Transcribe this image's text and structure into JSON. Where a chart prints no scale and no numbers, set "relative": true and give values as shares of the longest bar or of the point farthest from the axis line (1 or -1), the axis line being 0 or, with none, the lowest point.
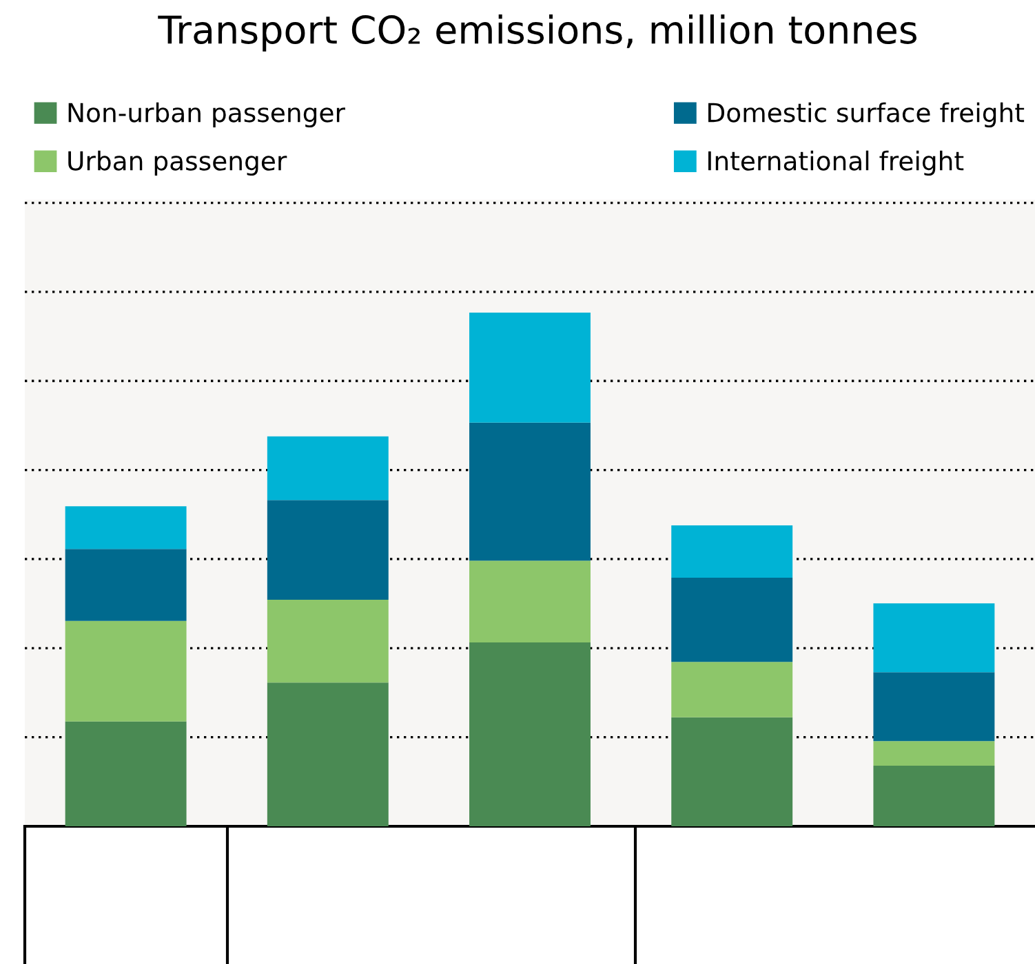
{
  "chart_data": {
    "type": "bar",
    "title": "Transport CO₂ emissions, million tonnes",
    "categories": [
      null,
      null,
      null,
      null,
      null
    ],
    "stacked": true,
    "relative": true,
    "grid": "y",
    "legend": "top",
    "series": [
      {
        "name": "Non-urban passenger",
        "color": "#4a8a53",
        "values": [
          0.204,
          0.28,
          0.358,
          0.212,
          0.118
        ]
      },
      {
        "name": "Urban passenger",
        "color": "#8dc66a",
        "values": [
          0.196,
          0.161,
          0.159,
          0.108,
          0.048
        ]
      },
      {
        "name": "Domestic surface freight",
        "color": "#006a8e",
        "values": [
          0.14,
          0.194,
          0.269,
          0.164,
          0.134
        ]
      },
      {
        "name": "International freight",
        "color": "#00b3d5",
        "values": [
          0.083,
          0.124,
          0.214,
          0.102,
          0.134
        ]
      }
    ]
  }
}
